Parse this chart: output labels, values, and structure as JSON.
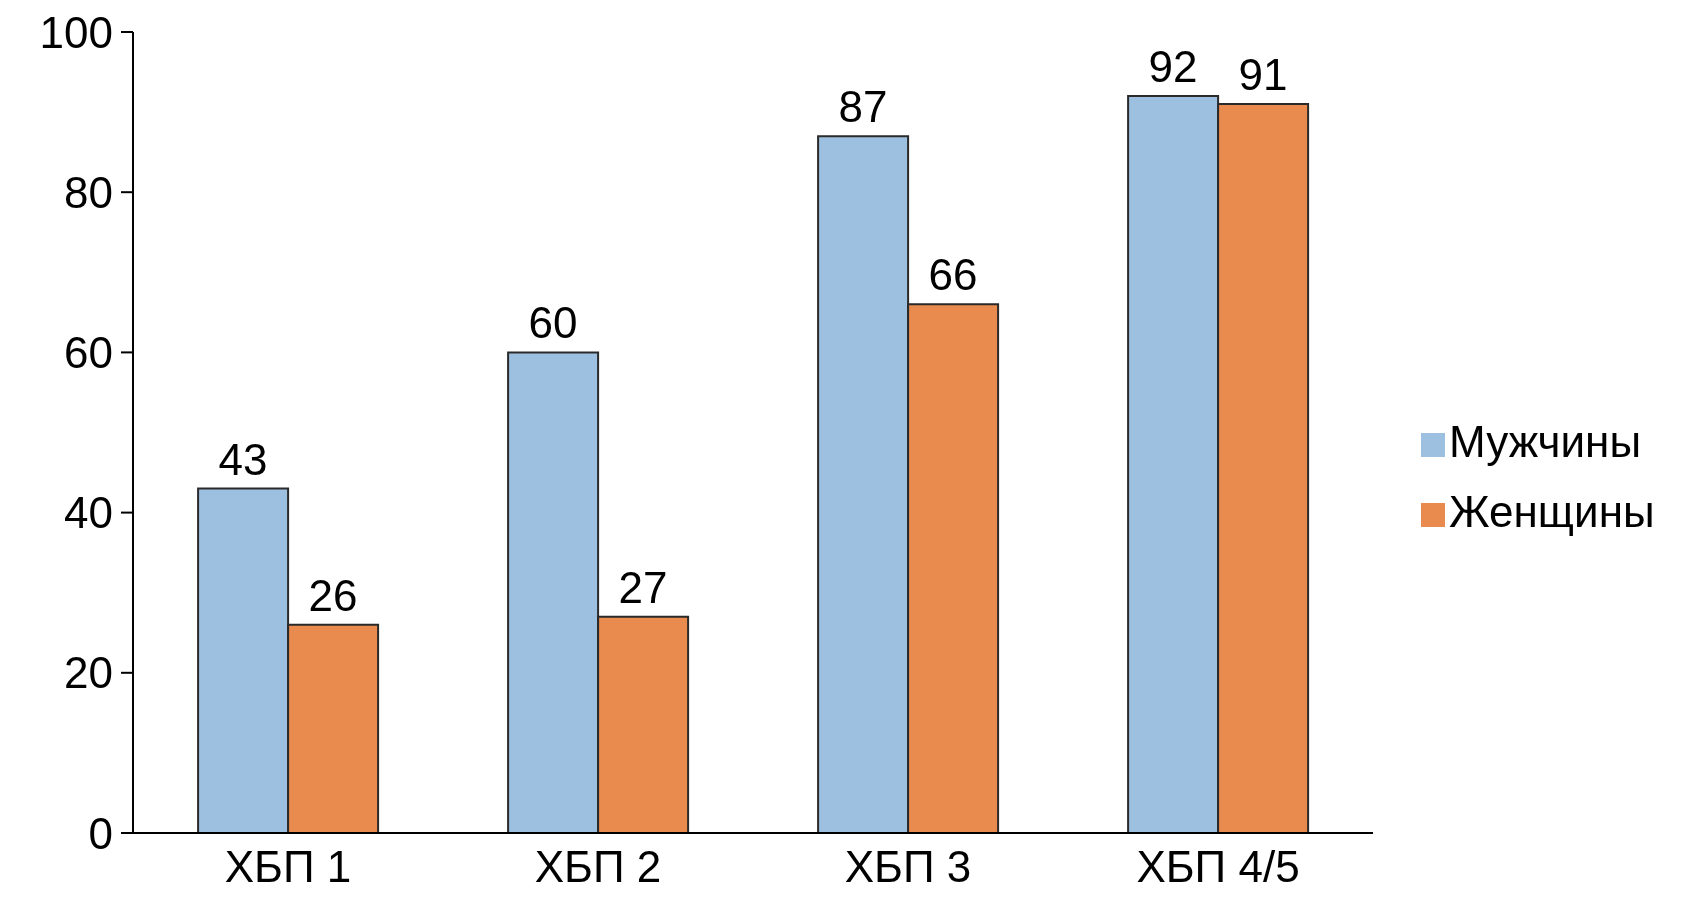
{
  "chart_data": {
    "type": "bar",
    "categories": [
      "ХБП 1",
      "ХБП 2",
      "ХБП 3",
      "ХБП 4/5"
    ],
    "series": [
      {
        "name": "Мужчины",
        "color": "#9ec0e0",
        "values": [
          43,
          60,
          87,
          92
        ]
      },
      {
        "name": "Женщины",
        "color": "#e98b4e",
        "values": [
          26,
          27,
          66,
          91
        ]
      }
    ],
    "ylim": [
      0,
      100
    ],
    "yticks": [
      0,
      20,
      40,
      60,
      80,
      100
    ],
    "legend": "right",
    "data_labels": true
  }
}
